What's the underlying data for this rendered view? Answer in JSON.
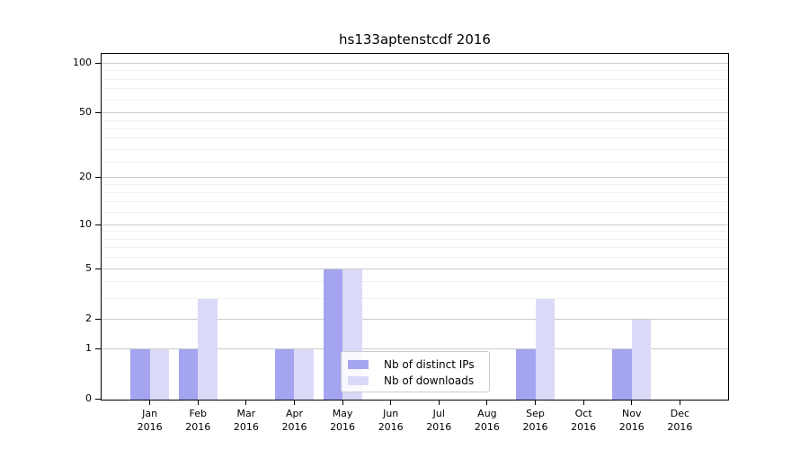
{
  "title": "hs133aptenstcdf 2016",
  "colors": {
    "distinct_ips": "#a4a4f0",
    "downloads": "#dadaf8",
    "grid_major": "#cacaca",
    "grid_minor": "#f0f0f0",
    "spine": "#000000",
    "text": "#000000"
  },
  "legend": {
    "items": [
      {
        "label": "Nb of distinct IPs",
        "color_key": "distinct_ips"
      },
      {
        "label": "Nb of downloads",
        "color_key": "downloads"
      }
    ]
  },
  "chart_data": {
    "type": "bar",
    "title": "hs133aptenstcdf 2016",
    "categories": [
      "Jan 2016",
      "Feb 2016",
      "Mar 2016",
      "Apr 2016",
      "May 2016",
      "Jun 2016",
      "Jul 2016",
      "Aug 2016",
      "Sep 2016",
      "Oct 2016",
      "Nov 2016",
      "Dec 2016"
    ],
    "series": [
      {
        "name": "Nb of distinct IPs",
        "color_key": "distinct_ips",
        "values": [
          1,
          1,
          0,
          1,
          5,
          0,
          0,
          0,
          1,
          0,
          1,
          0
        ]
      },
      {
        "name": "Nb of downloads",
        "color_key": "downloads",
        "values": [
          1,
          3,
          0,
          1,
          5,
          0,
          0,
          0,
          3,
          0,
          2,
          0
        ]
      }
    ],
    "xlabel": "",
    "ylabel": "",
    "yscale": "log1p",
    "yticks": [
      0,
      1,
      2,
      5,
      10,
      20,
      50,
      100
    ],
    "minor_gridlines": [
      3,
      4,
      6,
      7,
      8,
      9,
      12,
      14,
      16,
      18,
      25,
      30,
      35,
      40,
      45,
      60,
      70,
      80,
      90
    ],
    "ylim": [
      0,
      115
    ],
    "grid": true,
    "legend_position": "lower center"
  }
}
